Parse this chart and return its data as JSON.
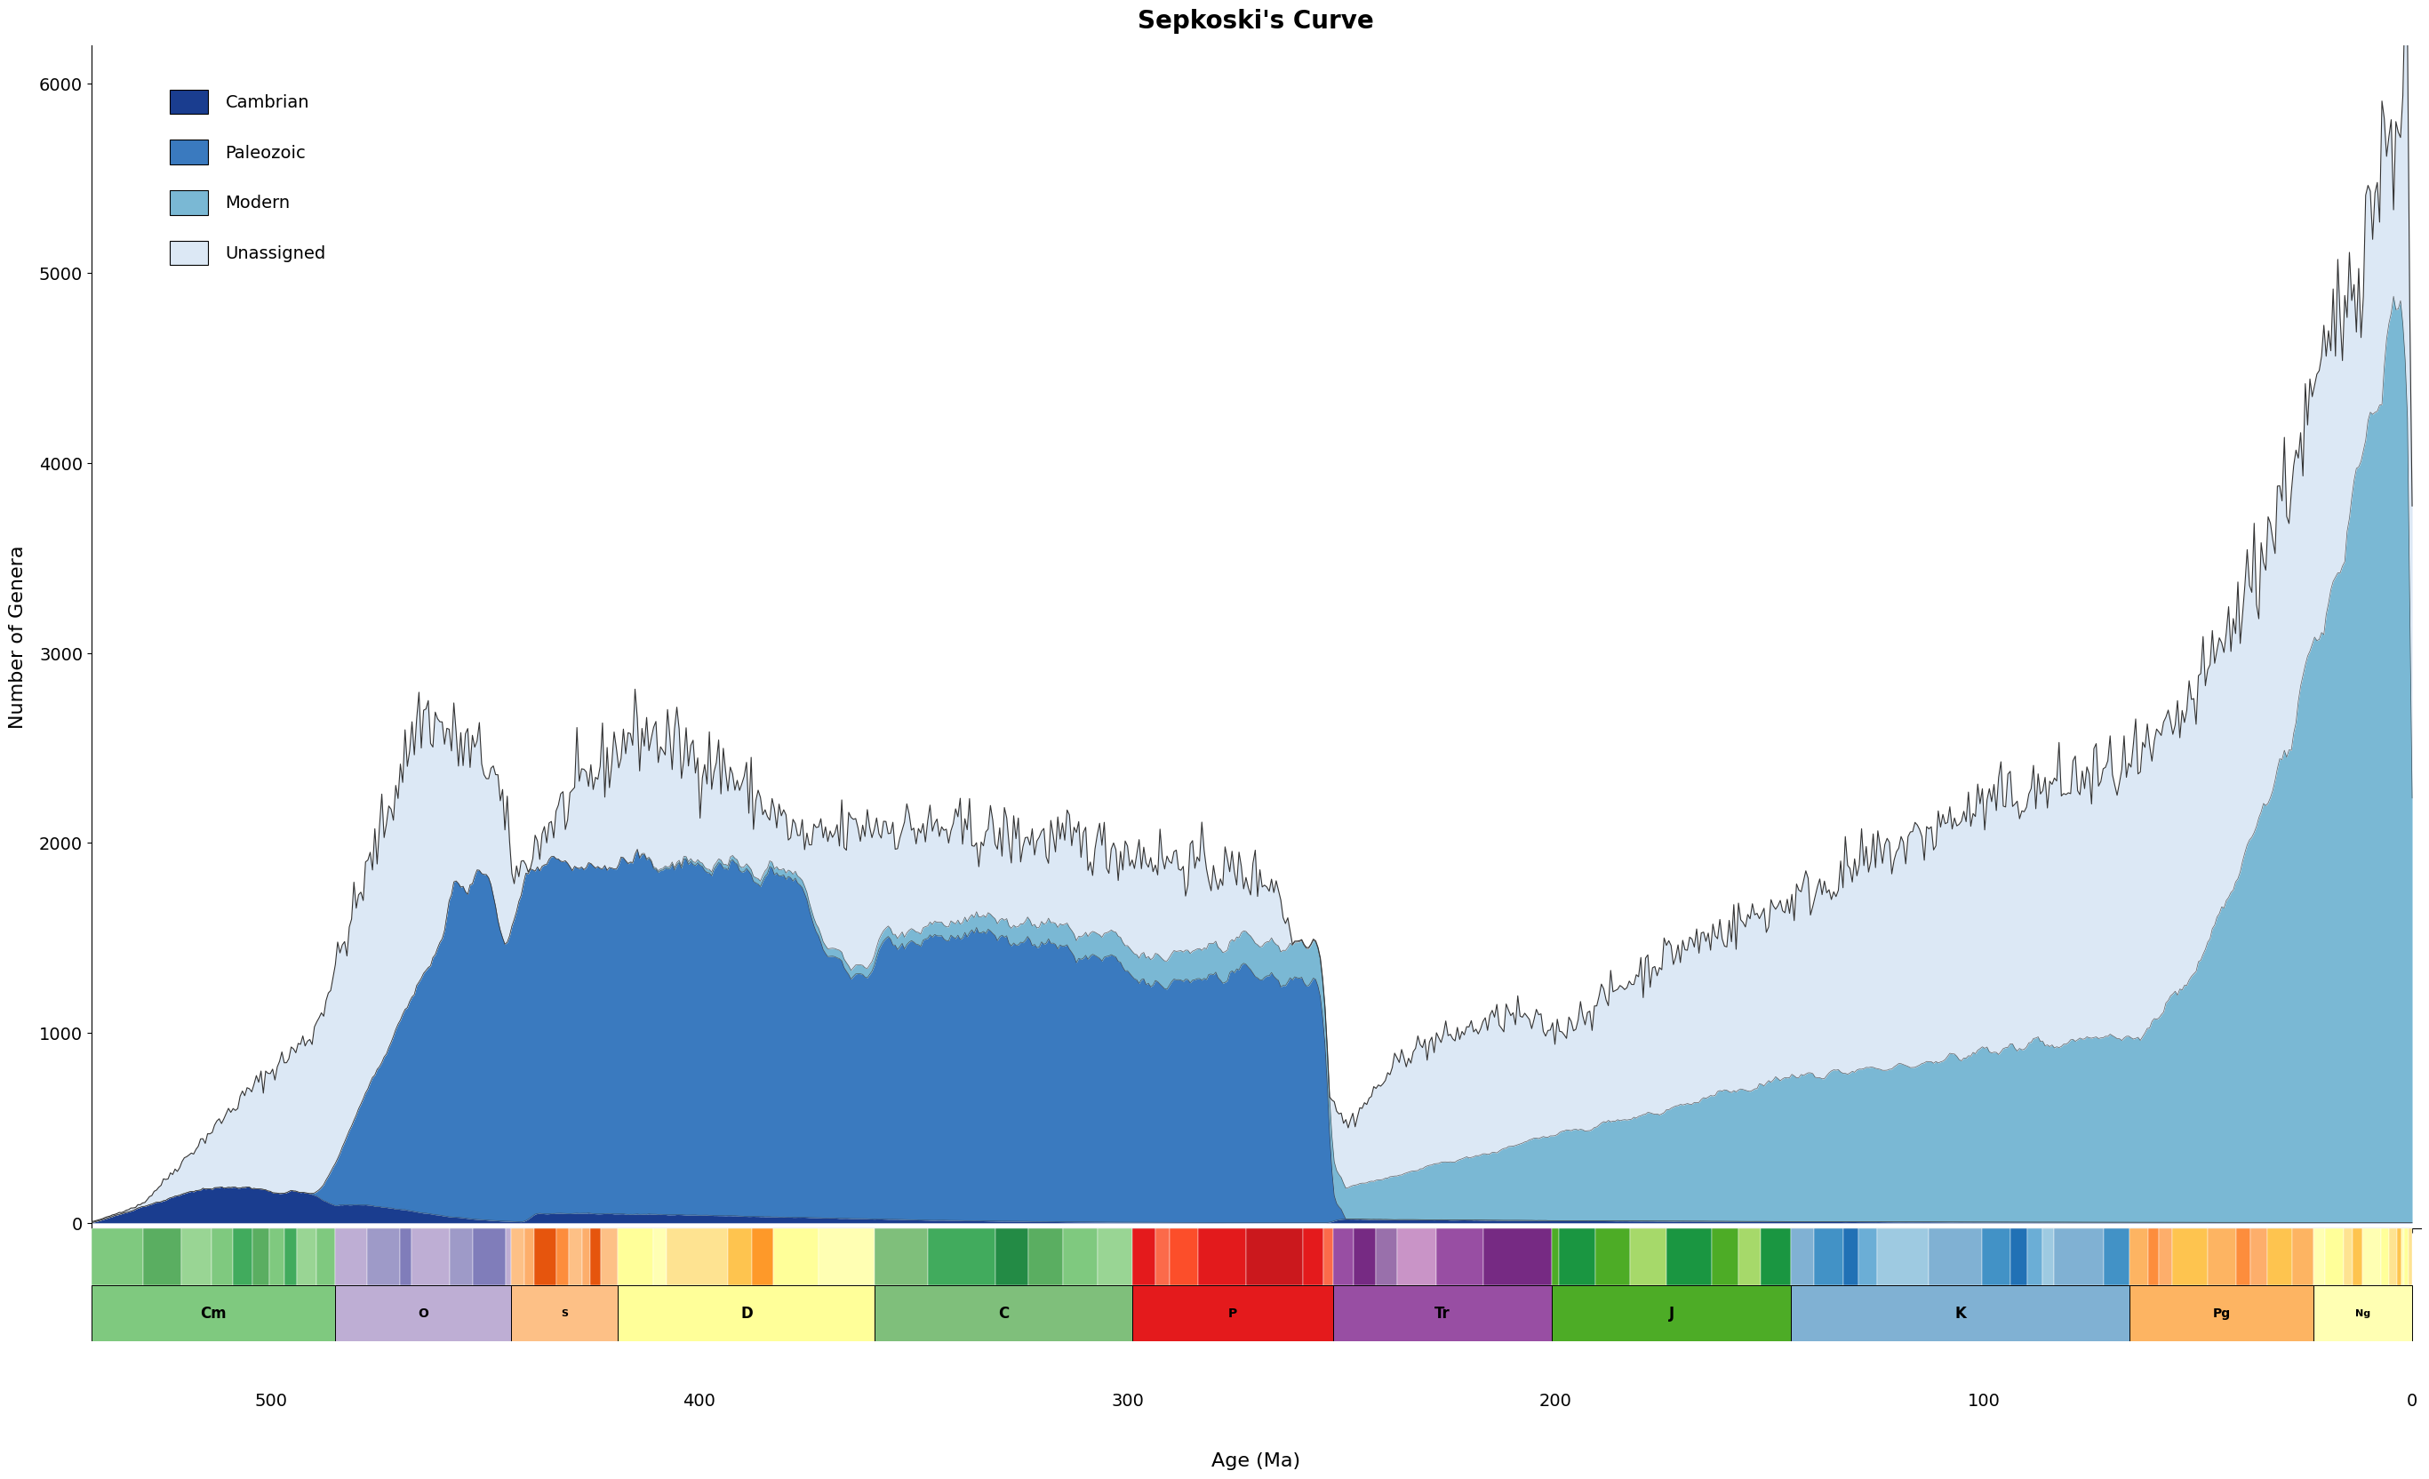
{
  "title": "Sepkoski's Curve",
  "xlabel": "Age (Ma)",
  "ylabel": "Number of Genera",
  "cambrian_color": "#1a3d8f",
  "paleozoic_color": "#3a7abf",
  "modern_color": "#7ab8d4",
  "unassigned_color": "#dce8f5",
  "outline_color": "#333333",
  "xlim_left": 542,
  "xlim_right": -2,
  "ylim": [
    -30,
    6200
  ],
  "yticks": [
    0,
    1000,
    2000,
    3000,
    4000,
    5000,
    6000
  ],
  "xticks": [
    500,
    400,
    300,
    200,
    100,
    0
  ],
  "geo_periods": [
    {
      "name": "Cm",
      "start": 542,
      "end": 485,
      "color": "#7fc97f"
    },
    {
      "name": "O",
      "start": 485,
      "end": 444,
      "color": "#beaed4"
    },
    {
      "name": "S",
      "start": 444,
      "end": 419,
      "color": "#fdc086"
    },
    {
      "name": "D",
      "start": 419,
      "end": 359,
      "color": "#ffff99"
    },
    {
      "name": "C",
      "start": 359,
      "end": 299,
      "color": "#7fbf7b"
    },
    {
      "name": "P",
      "start": 299,
      "end": 252,
      "color": "#e41a1c"
    },
    {
      "name": "Tr",
      "start": 252,
      "end": 201,
      "color": "#984ea3"
    },
    {
      "name": "J",
      "start": 201,
      "end": 145,
      "color": "#4dac26"
    },
    {
      "name": "K",
      "start": 145,
      "end": 66,
      "color": "#80b1d3"
    },
    {
      "name": "Pg",
      "start": 66,
      "end": 23,
      "color": "#fdb462"
    },
    {
      "name": "Ng",
      "start": 23,
      "end": 0,
      "color": "#ffffb3"
    }
  ],
  "sub_stages": {
    "Cm": [
      542,
      530,
      521,
      514,
      509,
      504.5,
      500.5,
      497,
      494,
      489.5,
      485
    ],
    "O": [
      485,
      477.7,
      470.0,
      467.3,
      458.4,
      453.0,
      445.2,
      444
    ],
    "S": [
      444,
      440.8,
      438.5,
      433.4,
      430.5,
      427.4,
      425.6,
      423.0,
      419
    ],
    "D": [
      419,
      410.8,
      407.6,
      393.3,
      387.7,
      382.7,
      372.2,
      359
    ],
    "C": [
      359,
      346.7,
      330.9,
      323.2,
      315.2,
      307.0,
      299
    ],
    "P": [
      299,
      293.5,
      290.1,
      283.5,
      272.3,
      259.1,
      254.2,
      252
    ],
    "Tr": [
      252,
      247.2,
      242.0,
      237.0,
      228.0,
      217.0,
      201
    ],
    "J": [
      201,
      199.3,
      190.8,
      182.7,
      174.1,
      163.5,
      157.3,
      152.1,
      145
    ],
    "K": [
      145,
      139.8,
      132.9,
      129.4,
      125.0,
      113.0,
      100.5,
      93.9,
      89.8,
      86.3,
      83.6,
      72.1,
      66
    ],
    "Pg": [
      66,
      61.6,
      59.2,
      56.0,
      47.8,
      41.2,
      37.8,
      33.9,
      28.1,
      23
    ],
    "Ng": [
      23,
      20.4,
      15.97,
      13.82,
      11.63,
      7.25,
      5.33,
      3.6,
      2.58,
      1.8,
      0.78,
      0
    ]
  },
  "sub_stage_colors": {
    "Cm": [
      "#7fc97f",
      "#5aae61",
      "#99d594",
      "#7fc97f",
      "#41ab5d",
      "#5aae61",
      "#7fc97f",
      "#41ab5d",
      "#99d594",
      "#7fc97f"
    ],
    "O": [
      "#beaed4",
      "#9e9ac8",
      "#807dba",
      "#beaed4",
      "#9e9ac8",
      "#807dba",
      "#beaed4"
    ],
    "S": [
      "#fdc086",
      "#fdae6b",
      "#e6550d",
      "#fd8d3c",
      "#fdc086",
      "#fdae6b",
      "#e6550d",
      "#fdc086"
    ],
    "D": [
      "#ffff99",
      "#ffffb3",
      "#fee391",
      "#fec44f",
      "#fe9929",
      "#ffff99",
      "#ffffb3"
    ],
    "C": [
      "#7fbf7b",
      "#41ab5d",
      "#238b45",
      "#5aae61",
      "#7fc97f",
      "#99d594"
    ],
    "P": [
      "#e41a1c",
      "#fb6a4a",
      "#fc4e2a",
      "#e31a1c",
      "#cb181d",
      "#e41a1c",
      "#fb6a4a"
    ],
    "Tr": [
      "#984ea3",
      "#762a83",
      "#9970ab",
      "#c994c7",
      "#984ea3",
      "#762a83"
    ],
    "J": [
      "#4dac26",
      "#1a9641",
      "#4dac26",
      "#a6d96a",
      "#1a9641",
      "#4dac26",
      "#a6d96a",
      "#1a9641"
    ],
    "K": [
      "#80b1d3",
      "#4292c6",
      "#2171b5",
      "#6baed6",
      "#9ecae1",
      "#80b1d3",
      "#4292c6",
      "#2171b5",
      "#6baed6",
      "#9ecae1",
      "#80b1d3",
      "#4292c6"
    ],
    "Pg": [
      "#fdb462",
      "#fd8d3c",
      "#fdae6b",
      "#fec44f",
      "#fdb462",
      "#fd8d3c",
      "#fdae6b",
      "#fec44f",
      "#fdb462"
    ],
    "Ng": [
      "#ffffb3",
      "#ffff99",
      "#fee391",
      "#fec44f",
      "#ffffb3",
      "#ffff99",
      "#fee391",
      "#fec44f",
      "#ffffb3",
      "#ffff99",
      "#fee391"
    ]
  }
}
